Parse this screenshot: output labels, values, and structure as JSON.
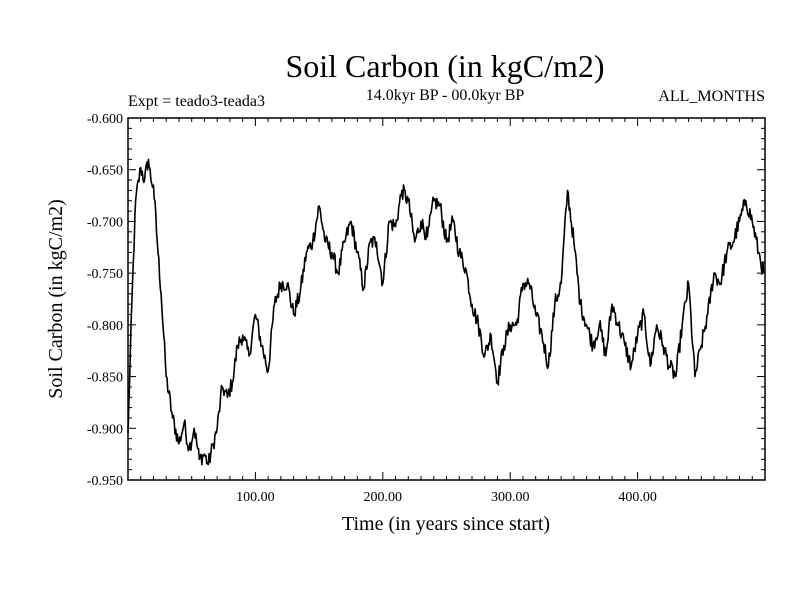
{
  "chart_data": {
    "type": "line",
    "title": "Soil Carbon (in kgC/m2)",
    "expt_label": "Expt = teado3-teada3",
    "period_label": "14.0kyr BP - 00.0kyr BP",
    "months_label": "ALL_MONTHS",
    "xlabel": "Time (in years since start)",
    "ylabel": "Soil Carbon (in kgC/m2)",
    "xlim": [
      0,
      500
    ],
    "ylim": [
      -0.95,
      -0.6
    ],
    "x_ticks": [
      100,
      200,
      300,
      400
    ],
    "x_tick_labels": [
      "100.00",
      "200.00",
      "300.00",
      "400.00"
    ],
    "y_ticks": [
      -0.6,
      -0.65,
      -0.7,
      -0.75,
      -0.8,
      -0.85,
      -0.9,
      -0.95
    ],
    "y_tick_labels": [
      "-0.600",
      "-0.650",
      "-0.700",
      "-0.750",
      "-0.800",
      "-0.850",
      "-0.900",
      "-0.950"
    ],
    "series": [
      {
        "name": "Soil Carbon",
        "x": [
          0,
          3,
          6,
          10,
          13,
          16,
          18,
          20,
          23,
          26,
          30,
          35,
          40,
          44,
          48,
          52,
          56,
          60,
          63,
          67,
          70,
          74,
          78,
          82,
          86,
          90,
          95,
          100,
          105,
          110,
          115,
          120,
          125,
          130,
          135,
          140,
          145,
          150,
          155,
          160,
          165,
          170,
          175,
          180,
          185,
          190,
          195,
          200,
          205,
          210,
          215,
          220,
          225,
          230,
          235,
          240,
          245,
          250,
          255,
          260,
          265,
          270,
          275,
          280,
          285,
          290,
          295,
          300,
          305,
          310,
          315,
          320,
          325,
          330,
          335,
          340,
          345,
          350,
          355,
          360,
          365,
          370,
          375,
          380,
          385,
          390,
          395,
          400,
          405,
          410,
          415,
          420,
          425,
          430,
          435,
          440,
          445,
          450,
          455,
          460,
          465,
          470,
          475,
          480,
          485,
          490,
          495,
          499
        ],
        "y": [
          -0.905,
          -0.78,
          -0.68,
          -0.648,
          -0.66,
          -0.64,
          -0.66,
          -0.665,
          -0.72,
          -0.77,
          -0.85,
          -0.89,
          -0.915,
          -0.895,
          -0.92,
          -0.9,
          -0.93,
          -0.925,
          -0.935,
          -0.915,
          -0.9,
          -0.86,
          -0.87,
          -0.855,
          -0.82,
          -0.81,
          -0.83,
          -0.79,
          -0.82,
          -0.845,
          -0.78,
          -0.76,
          -0.76,
          -0.79,
          -0.77,
          -0.73,
          -0.72,
          -0.685,
          -0.72,
          -0.73,
          -0.75,
          -0.72,
          -0.7,
          -0.73,
          -0.765,
          -0.72,
          -0.72,
          -0.76,
          -0.7,
          -0.705,
          -0.67,
          -0.68,
          -0.72,
          -0.7,
          -0.715,
          -0.68,
          -0.685,
          -0.72,
          -0.7,
          -0.73,
          -0.745,
          -0.78,
          -0.8,
          -0.83,
          -0.81,
          -0.855,
          -0.82,
          -0.8,
          -0.8,
          -0.76,
          -0.76,
          -0.79,
          -0.81,
          -0.84,
          -0.78,
          -0.76,
          -0.67,
          -0.72,
          -0.78,
          -0.8,
          -0.82,
          -0.8,
          -0.83,
          -0.78,
          -0.8,
          -0.82,
          -0.84,
          -0.81,
          -0.79,
          -0.84,
          -0.8,
          -0.82,
          -0.84,
          -0.85,
          -0.8,
          -0.76,
          -0.85,
          -0.82,
          -0.79,
          -0.75,
          -0.76,
          -0.73,
          -0.72,
          -0.7,
          -0.68,
          -0.7,
          -0.73,
          -0.75
        ]
      }
    ]
  }
}
